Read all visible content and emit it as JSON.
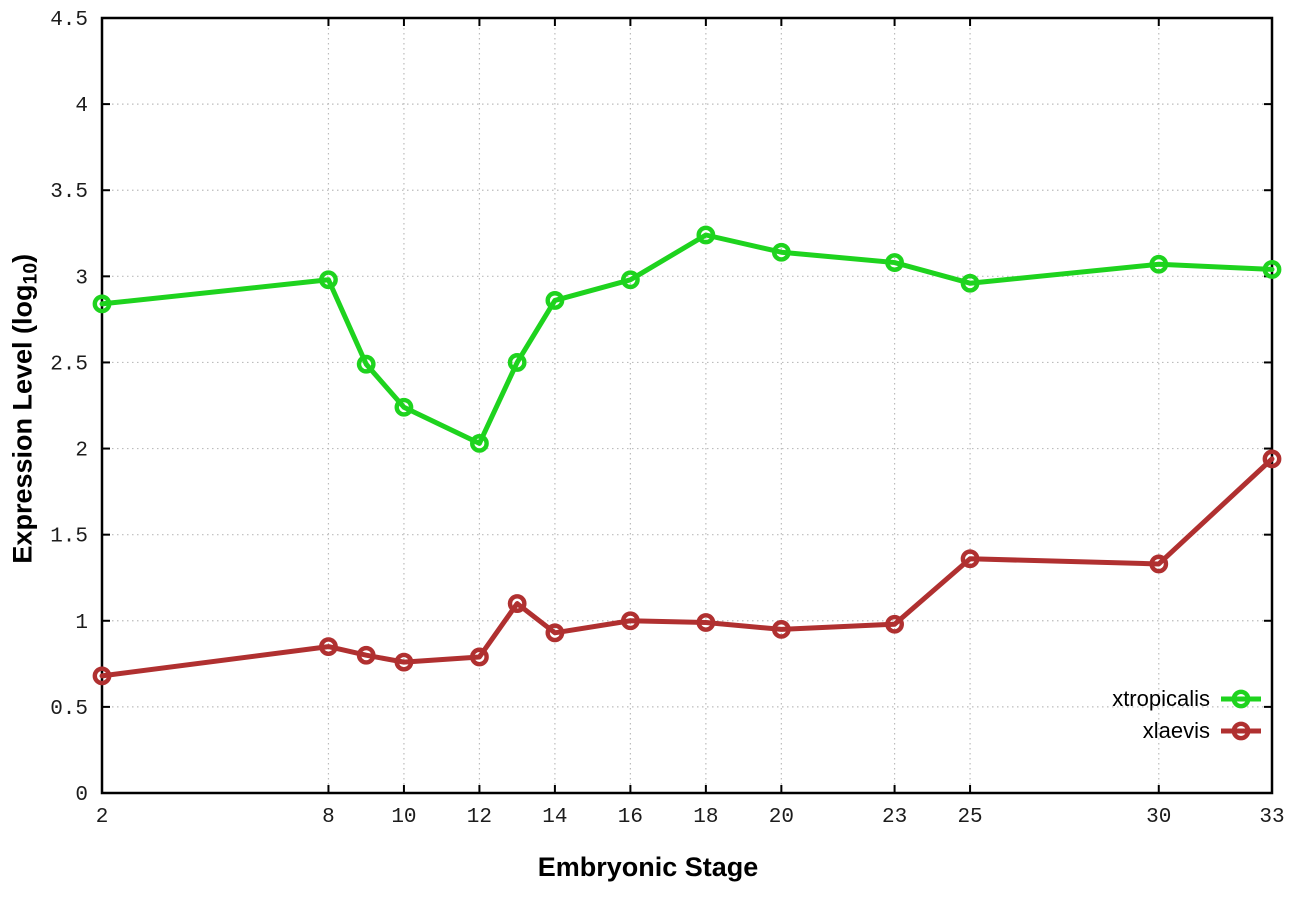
{
  "chart_data": {
    "type": "line",
    "title": "",
    "xlabel": "Embryonic Stage",
    "ylabel": {
      "prefix": "Expression Level (log",
      "subscript": "10",
      "suffix": ")"
    },
    "x_axis": {
      "range": [
        2,
        33
      ],
      "ticks": [
        2,
        8,
        10,
        12,
        14,
        16,
        18,
        20,
        23,
        25,
        30,
        33
      ],
      "tick_labels": [
        "2",
        "8",
        "10",
        "12",
        "14",
        "16",
        "18",
        "20",
        "23",
        "25",
        "30",
        "33"
      ]
    },
    "y_axis": {
      "range": [
        0,
        4.5
      ],
      "ticks": [
        0,
        0.5,
        1,
        1.5,
        2,
        2.5,
        3,
        3.5,
        4,
        4.5
      ],
      "tick_labels": [
        "0",
        "0.5",
        "1",
        "1.5",
        "2",
        "2.5",
        "3",
        "3.5",
        "4",
        "4.5"
      ]
    },
    "grid": true,
    "legend_position": "bottom-right",
    "marker": "open-circle",
    "x": [
      2,
      8,
      9,
      10,
      12,
      13,
      14,
      16,
      18,
      20,
      23,
      25,
      30,
      33
    ],
    "series": [
      {
        "name": "xtropicalis",
        "color": "#1ed31e",
        "values": [
          2.84,
          2.98,
          2.49,
          2.24,
          2.03,
          2.5,
          2.86,
          2.98,
          3.24,
          3.14,
          3.08,
          2.96,
          3.07,
          3.04
        ]
      },
      {
        "name": "xlaevis",
        "color": "#b03030",
        "values": [
          0.68,
          0.85,
          0.8,
          0.76,
          0.79,
          1.1,
          0.93,
          1.0,
          0.99,
          0.95,
          0.98,
          1.36,
          1.33,
          1.94
        ]
      }
    ],
    "colors": {
      "background": "#ffffff",
      "border": "#000000",
      "grid": "#bcbcbc",
      "tick_text": "#1c1c1c"
    }
  }
}
